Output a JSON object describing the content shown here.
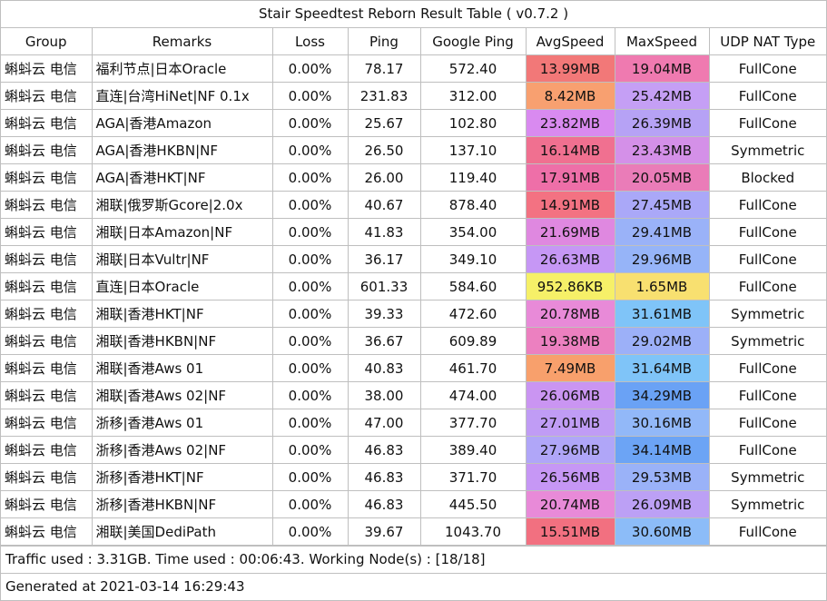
{
  "title": "Stair Speedtest Reborn Result Table ( v0.7.2 )",
  "headers": [
    "Group",
    "Remarks",
    "Loss",
    "Ping",
    "Google Ping",
    "AvgSpeed",
    "MaxSpeed",
    "UDP NAT Type"
  ],
  "rows": [
    {
      "group": "蝌蚪云 电信",
      "remarks": "福利节点|日本Oracle",
      "loss": "0.00%",
      "ping": "78.17",
      "google_ping": "572.40",
      "avg": "13.99MB",
      "avg_color": "#f27878",
      "max": "19.04MB",
      "max_color": "#ef7ab0",
      "nat": "FullCone"
    },
    {
      "group": "蝌蚪云 电信",
      "remarks": "直连|台湾HiNet|NF 0.1x",
      "loss": "0.00%",
      "ping": "231.83",
      "google_ping": "312.00",
      "avg": "8.42MB",
      "avg_color": "#f8a070",
      "max": "25.42MB",
      "max_color": "#c59ff5",
      "nat": "FullCone"
    },
    {
      "group": "蝌蚪云 电信",
      "remarks": "AGA|香港Amazon",
      "loss": "0.00%",
      "ping": "25.67",
      "google_ping": "102.80",
      "avg": "23.82MB",
      "avg_color": "#d98af0",
      "max": "26.39MB",
      "max_color": "#b6a2f5",
      "nat": "FullCone"
    },
    {
      "group": "蝌蚪云 电信",
      "remarks": "AGA|香港HKBN|NF",
      "loss": "0.00%",
      "ping": "26.50",
      "google_ping": "137.10",
      "avg": "16.14MB",
      "avg_color": "#f07090",
      "max": "23.43MB",
      "max_color": "#d490e8",
      "nat": "Symmetric"
    },
    {
      "group": "蝌蚪云 电信",
      "remarks": "AGA|香港HKT|NF",
      "loss": "0.00%",
      "ping": "26.00",
      "google_ping": "119.40",
      "avg": "17.91MB",
      "avg_color": "#ee6fa8",
      "max": "20.05MB",
      "max_color": "#ea7cb8",
      "nat": "Blocked"
    },
    {
      "group": "蝌蚪云 电信",
      "remarks": "湘联|俄罗斯Gcore|2.0x",
      "loss": "0.00%",
      "ping": "40.67",
      "google_ping": "878.40",
      "avg": "14.91MB",
      "avg_color": "#f37282",
      "max": "27.45MB",
      "max_color": "#aaa8f8",
      "nat": "FullCone"
    },
    {
      "group": "蝌蚪云 电信",
      "remarks": "湘联|日本Amazon|NF",
      "loss": "0.00%",
      "ping": "41.83",
      "google_ping": "354.00",
      "avg": "21.69MB",
      "avg_color": "#df88e0",
      "max": "29.41MB",
      "max_color": "#9ab2f8",
      "nat": "FullCone"
    },
    {
      "group": "蝌蚪云 电信",
      "remarks": "湘联|日本Vultr|NF",
      "loss": "0.00%",
      "ping": "36.17",
      "google_ping": "349.10",
      "avg": "26.63MB",
      "avg_color": "#c697f5",
      "max": "29.96MB",
      "max_color": "#96b4f8",
      "nat": "FullCone"
    },
    {
      "group": "蝌蚪云 电信",
      "remarks": "直连|日本Oracle",
      "loss": "0.00%",
      "ping": "601.33",
      "google_ping": "584.60",
      "avg": "952.86KB",
      "avg_color": "#f6f068",
      "max": "1.65MB",
      "max_color": "#f8e070",
      "nat": "FullCone"
    },
    {
      "group": "蝌蚪云 电信",
      "remarks": "湘联|香港HKT|NF",
      "loss": "0.00%",
      "ping": "39.33",
      "google_ping": "472.60",
      "avg": "20.78MB",
      "avg_color": "#e88ad8",
      "max": "31.61MB",
      "max_color": "#7fc4f8",
      "nat": "Symmetric"
    },
    {
      "group": "蝌蚪云 电信",
      "remarks": "湘联|香港HKBN|NF",
      "loss": "0.00%",
      "ping": "36.67",
      "google_ping": "609.89",
      "avg": "19.38MB",
      "avg_color": "#ec80c0",
      "max": "29.02MB",
      "max_color": "#9cb0f8",
      "nat": "Symmetric"
    },
    {
      "group": "蝌蚪云 电信",
      "remarks": "湘联|香港Aws 01",
      "loss": "0.00%",
      "ping": "40.83",
      "google_ping": "461.70",
      "avg": "7.49MB",
      "avg_color": "#f8a06c",
      "max": "31.64MB",
      "max_color": "#7fc4f8",
      "nat": "FullCone"
    },
    {
      "group": "蝌蚪云 电信",
      "remarks": "湘联|香港Aws 02|NF",
      "loss": "0.00%",
      "ping": "38.00",
      "google_ping": "474.00",
      "avg": "26.06MB",
      "avg_color": "#ca95f2",
      "max": "34.29MB",
      "max_color": "#6aa2f5",
      "nat": "FullCone"
    },
    {
      "group": "蝌蚪云 电信",
      "remarks": "浙移|香港Aws 01",
      "loss": "0.00%",
      "ping": "47.00",
      "google_ping": "377.70",
      "avg": "27.01MB",
      "avg_color": "#c09cf5",
      "max": "30.16MB",
      "max_color": "#92b8f8",
      "nat": "FullCone"
    },
    {
      "group": "蝌蚪云 电信",
      "remarks": "浙移|香港Aws 02|NF",
      "loss": "0.00%",
      "ping": "46.83",
      "google_ping": "389.40",
      "avg": "27.96MB",
      "avg_color": "#b0a6f8",
      "max": "34.14MB",
      "max_color": "#6ca4f5",
      "nat": "FullCone"
    },
    {
      "group": "蝌蚪云 电信",
      "remarks": "浙移|香港HKT|NF",
      "loss": "0.00%",
      "ping": "46.83",
      "google_ping": "371.70",
      "avg": "26.56MB",
      "avg_color": "#c697f5",
      "max": "29.53MB",
      "max_color": "#9ab2f8",
      "nat": "Symmetric"
    },
    {
      "group": "蝌蚪云 电信",
      "remarks": "浙移|香港HKBN|NF",
      "loss": "0.00%",
      "ping": "46.83",
      "google_ping": "445.50",
      "avg": "20.74MB",
      "avg_color": "#e88ad8",
      "max": "26.09MB",
      "max_color": "#bca0f5",
      "nat": "Symmetric"
    },
    {
      "group": "蝌蚪云 电信",
      "remarks": "湘联|美国DediPath",
      "loss": "0.00%",
      "ping": "39.67",
      "google_ping": "1043.70",
      "avg": "15.51MB",
      "avg_color": "#f27080",
      "max": "30.60MB",
      "max_color": "#8cbcf8",
      "nat": "FullCone"
    }
  ],
  "footer": {
    "traffic": "Traffic used : 3.31GB. Time used : 00:06:43. Working Node(s) : [18/18]",
    "generated": "Generated at 2021-03-14 16:29:43"
  }
}
